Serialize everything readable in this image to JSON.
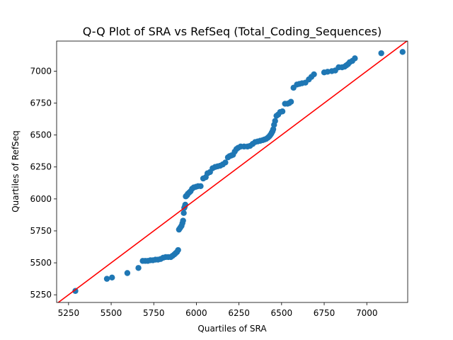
{
  "chart_data": {
    "type": "scatter",
    "title": "Q-Q Plot of SRA vs RefSeq (Total_Coding_Sequences)",
    "xlabel": "Quartiles of SRA",
    "ylabel": "Quartiles of RefSeq",
    "xlim": [
      5180,
      7240
    ],
    "ylim": [
      5190,
      7235
    ],
    "xticks": [
      5250,
      5500,
      5750,
      6000,
      6250,
      6500,
      6750,
      7000
    ],
    "yticks": [
      5250,
      5500,
      5750,
      6000,
      6250,
      6500,
      6750,
      7000
    ],
    "grid": false,
    "colors": {
      "points": "#1f77b4",
      "reference_line": "#ff0000"
    },
    "reference_line": {
      "x": [
        5180,
        7240
      ],
      "y": [
        5180,
        7240
      ]
    },
    "points": {
      "x": [
        5290,
        5475,
        5505,
        5595,
        5660,
        5685,
        5700,
        5715,
        5730,
        5745,
        5760,
        5775,
        5790,
        5805,
        5820,
        5835,
        5850,
        5860,
        5870,
        5878,
        5886,
        5893,
        5898,
        5903,
        5908,
        5913,
        5918,
        5922,
        5926,
        5929,
        5932,
        5935,
        5938,
        5942,
        5946,
        5950,
        5958,
        5966,
        5975,
        5985,
        5998,
        6010,
        6025,
        6040,
        6055,
        6065,
        6080,
        6095,
        6110,
        6125,
        6140,
        6155,
        6170,
        6185,
        6195,
        6205,
        6215,
        6225,
        6235,
        6245,
        6260,
        6280,
        6300,
        6315,
        6330,
        6345,
        6360,
        6375,
        6390,
        6400,
        6410,
        6420,
        6428,
        6434,
        6439,
        6443,
        6447,
        6451,
        6456,
        6462,
        6470,
        6480,
        6492,
        6505,
        6520,
        6535,
        6545,
        6555,
        6570,
        6590,
        6605,
        6620,
        6640,
        6660,
        6675,
        6690,
        6750,
        6770,
        6795,
        6815,
        6835,
        6855,
        6870,
        6880,
        6890,
        6900,
        6915,
        6930,
        7085,
        7210
      ],
      "y": [
        5280,
        5375,
        5385,
        5420,
        5460,
        5515,
        5515,
        5515,
        5520,
        5520,
        5525,
        5525,
        5530,
        5540,
        5545,
        5545,
        5545,
        5555,
        5565,
        5575,
        5585,
        5600,
        5760,
        5770,
        5780,
        5790,
        5810,
        5830,
        5890,
        5930,
        5940,
        5955,
        6020,
        6025,
        6030,
        6040,
        6050,
        6060,
        6080,
        6090,
        6095,
        6100,
        6100,
        6160,
        6170,
        6200,
        6210,
        6240,
        6250,
        6255,
        6260,
        6270,
        6285,
        6325,
        6335,
        6340,
        6345,
        6370,
        6390,
        6400,
        6410,
        6410,
        6410,
        6415,
        6430,
        6445,
        6450,
        6455,
        6460,
        6465,
        6470,
        6480,
        6490,
        6500,
        6510,
        6520,
        6530,
        6545,
        6580,
        6610,
        6650,
        6660,
        6680,
        6685,
        6745,
        6745,
        6750,
        6760,
        6870,
        6895,
        6900,
        6905,
        6910,
        6935,
        6955,
        6975,
        6990,
        6995,
        7000,
        7005,
        7030,
        7030,
        7035,
        7045,
        7055,
        7070,
        7080,
        7100,
        7140,
        7150
      ]
    }
  }
}
